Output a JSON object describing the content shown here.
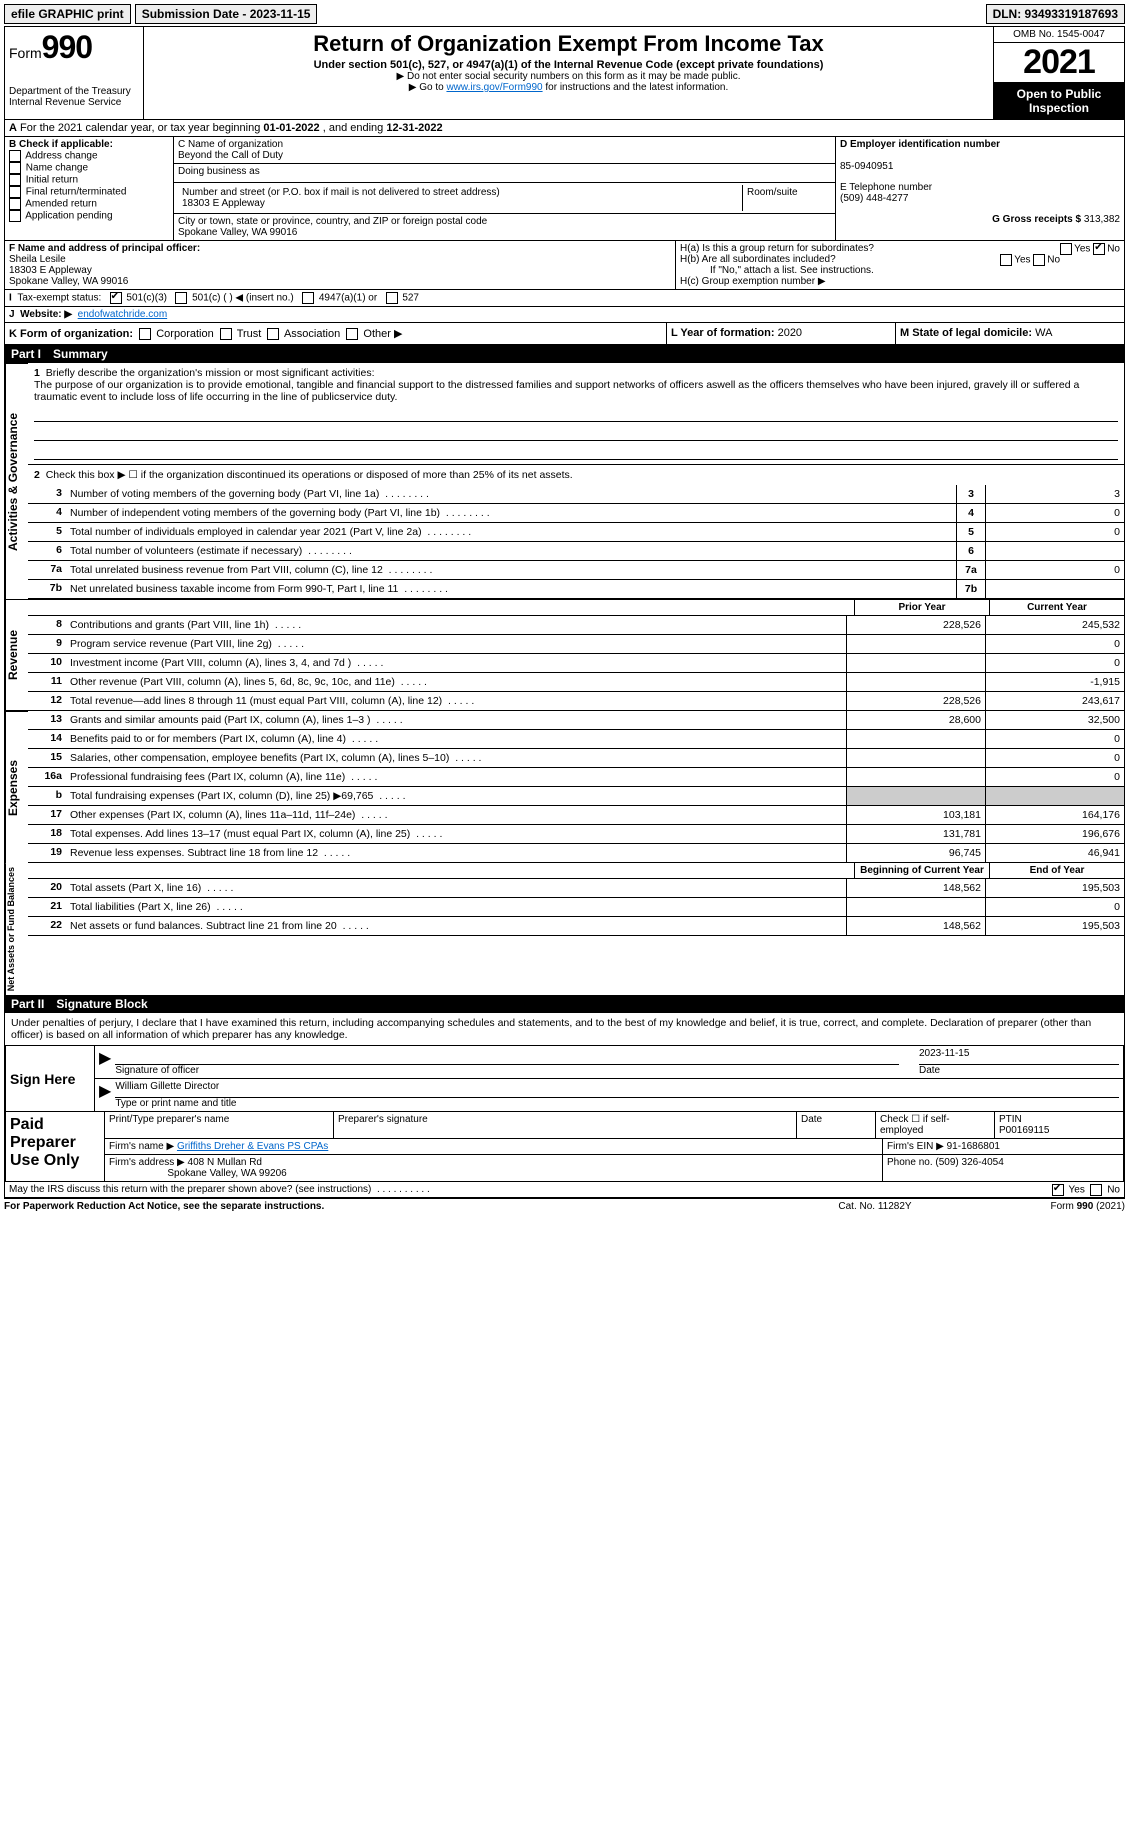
{
  "topbar": {
    "efile": "efile GRAPHIC print",
    "submission_label": "Submission Date - 2023-11-15",
    "dln_label": "DLN: 93493319187693"
  },
  "header": {
    "form_prefix": "Form",
    "form_number": "990",
    "title": "Return of Organization Exempt From Income Tax",
    "subtitle": "Under section 501(c), 527, or 4947(a)(1) of the Internal Revenue Code (except private foundations)",
    "note1": "▶ Do not enter social security numbers on this form as it may be made public.",
    "note2_pre": "▶ Go to ",
    "note2_link": "www.irs.gov/Form990",
    "note2_post": " for instructions and the latest information.",
    "dept": "Department of the Treasury\nInternal Revenue Service",
    "omb": "OMB No. 1545-0047",
    "year": "2021",
    "open": "Open to Public Inspection"
  },
  "rowA": {
    "text_pre": "For the 2021 calendar year, or tax year beginning ",
    "begin": "01-01-2022",
    "mid": " , and ending ",
    "end": "12-31-2022"
  },
  "sectionB": {
    "label": "B Check if applicable:",
    "items": [
      "Address change",
      "Name change",
      "Initial return",
      "Final return/terminated",
      "Amended return",
      "Application pending"
    ]
  },
  "sectionC": {
    "name_label": "C Name of organization",
    "name": "Beyond the Call of Duty",
    "dba_label": "Doing business as",
    "dba": "",
    "street_label": "Number and street (or P.O. box if mail is not delivered to street address)",
    "room_label": "Room/suite",
    "street": "18303 E Appleway",
    "city_label": "City or town, state or province, country, and ZIP or foreign postal code",
    "city": "Spokane Valley, WA  99016"
  },
  "sectionD": {
    "ein_label": "D Employer identification number",
    "ein": "85-0940951",
    "tel_label": "E Telephone number",
    "tel": "(509) 448-4277",
    "gross_label": "G Gross receipts $",
    "gross": "313,382"
  },
  "sectionF": {
    "label": "F Name and address of principal officer:",
    "name": "Sheila Lesile",
    "addr1": "18303 E Appleway",
    "addr2": "Spokane Valley, WA  99016"
  },
  "sectionH": {
    "ha": "H(a)  Is this a group return for subordinates?",
    "hb": "H(b)  Are all subordinates included?",
    "hb_note": "If \"No,\" attach a list. See instructions.",
    "hc": "H(c)  Group exemption number ▶",
    "yes": "Yes",
    "no": "No"
  },
  "rowI": {
    "label": "Tax-exempt status:",
    "opts": [
      "501(c)(3)",
      "501(c) (    ) ◀ (insert no.)",
      "4947(a)(1) or",
      "527"
    ]
  },
  "rowJ": {
    "label": "Website: ▶",
    "value": "endofwatchride.com"
  },
  "rowK": {
    "label": "K Form of organization:",
    "opts": [
      "Corporation",
      "Trust",
      "Association",
      "Other ▶"
    ]
  },
  "rowL": {
    "label": "L Year of formation:",
    "value": "2020"
  },
  "rowM": {
    "label": "M State of legal domicile:",
    "value": "WA"
  },
  "partI": {
    "tag": "Part I",
    "title": "Summary",
    "side1": "Activities & Governance",
    "side2": "Revenue",
    "side3": "Expenses",
    "side4": "Net Assets or Fund Balances",
    "l1_label": "Briefly describe the organization's mission or most significant activities:",
    "l1_text": "The purpose of our organization is to provide emotional, tangible and financial support to the distressed families and support networks of officers aswell as the officers themselves who have been injured, gravely ill or suffered a traumatic event to include loss of life occurring in the line of publicservice duty.",
    "l2": "Check this box ▶ ☐ if the organization discontinued its operations or disposed of more than 25% of its net assets.",
    "lines_ag": [
      {
        "n": "3",
        "d": "Number of voting members of the governing body (Part VI, line 1a)",
        "v": "3"
      },
      {
        "n": "4",
        "d": "Number of independent voting members of the governing body (Part VI, line 1b)",
        "v": "0"
      },
      {
        "n": "5",
        "d": "Total number of individuals employed in calendar year 2021 (Part V, line 2a)",
        "v": "0"
      },
      {
        "n": "6",
        "d": "Total number of volunteers (estimate if necessary)",
        "v": ""
      },
      {
        "n": "7a",
        "d": "Total unrelated business revenue from Part VIII, column (C), line 12",
        "v": "0"
      },
      {
        "n": "7b",
        "d": "Net unrelated business taxable income from Form 990-T, Part I, line 11",
        "v": ""
      }
    ],
    "col_prior": "Prior Year",
    "col_current": "Current Year",
    "lines_rev": [
      {
        "n": "8",
        "d": "Contributions and grants (Part VIII, line 1h)",
        "p": "228,526",
        "c": "245,532"
      },
      {
        "n": "9",
        "d": "Program service revenue (Part VIII, line 2g)",
        "p": "",
        "c": "0"
      },
      {
        "n": "10",
        "d": "Investment income (Part VIII, column (A), lines 3, 4, and 7d )",
        "p": "",
        "c": "0"
      },
      {
        "n": "11",
        "d": "Other revenue (Part VIII, column (A), lines 5, 6d, 8c, 9c, 10c, and 11e)",
        "p": "",
        "c": "-1,915"
      },
      {
        "n": "12",
        "d": "Total revenue—add lines 8 through 11 (must equal Part VIII, column (A), line 12)",
        "p": "228,526",
        "c": "243,617"
      }
    ],
    "lines_exp": [
      {
        "n": "13",
        "d": "Grants and similar amounts paid (Part IX, column (A), lines 1–3 )",
        "p": "28,600",
        "c": "32,500"
      },
      {
        "n": "14",
        "d": "Benefits paid to or for members (Part IX, column (A), line 4)",
        "p": "",
        "c": "0"
      },
      {
        "n": "15",
        "d": "Salaries, other compensation, employee benefits (Part IX, column (A), lines 5–10)",
        "p": "",
        "c": "0"
      },
      {
        "n": "16a",
        "d": "Professional fundraising fees (Part IX, column (A), line 11e)",
        "p": "",
        "c": "0"
      },
      {
        "n": "b",
        "d": "Total fundraising expenses (Part IX, column (D), line 25) ▶69,765",
        "p": "SHADE",
        "c": "SHADE"
      },
      {
        "n": "17",
        "d": "Other expenses (Part IX, column (A), lines 11a–11d, 11f–24e)",
        "p": "103,181",
        "c": "164,176"
      },
      {
        "n": "18",
        "d": "Total expenses. Add lines 13–17 (must equal Part IX, column (A), line 25)",
        "p": "131,781",
        "c": "196,676"
      },
      {
        "n": "19",
        "d": "Revenue less expenses. Subtract line 18 from line 12",
        "p": "96,745",
        "c": "46,941"
      }
    ],
    "col_begin": "Beginning of Current Year",
    "col_end": "End of Year",
    "lines_net": [
      {
        "n": "20",
        "d": "Total assets (Part X, line 16)",
        "p": "148,562",
        "c": "195,503"
      },
      {
        "n": "21",
        "d": "Total liabilities (Part X, line 26)",
        "p": "",
        "c": "0"
      },
      {
        "n": "22",
        "d": "Net assets or fund balances. Subtract line 21 from line 20",
        "p": "148,562",
        "c": "195,503"
      }
    ]
  },
  "partII": {
    "tag": "Part II",
    "title": "Signature Block",
    "decl": "Under penalties of perjury, I declare that I have examined this return, including accompanying schedules and statements, and to the best of my knowledge and belief, it is true, correct, and complete. Declaration of preparer (other than officer) is based on all information of which preparer has any knowledge.",
    "sign_here": "Sign Here",
    "sig_officer": "Signature of officer",
    "sig_date": "2023-11-15",
    "date_lbl": "Date",
    "typed_name": "William Gillette  Director",
    "typed_lbl": "Type or print name and title",
    "paid": "Paid Preparer Use Only",
    "pp_name_lbl": "Print/Type preparer's name",
    "pp_sig_lbl": "Preparer's signature",
    "pp_date_lbl": "Date",
    "pp_self": "Check ☐ if self-employed",
    "ptin_lbl": "PTIN",
    "ptin": "P00169115",
    "firm_name_lbl": "Firm's name    ▶",
    "firm_name": "Griffiths Dreher & Evans PS CPAs",
    "firm_ein_lbl": "Firm's EIN ▶",
    "firm_ein": "91-1686801",
    "firm_addr_lbl": "Firm's address ▶",
    "firm_addr": "408 N Mullan Rd",
    "firm_city": "Spokane Valley, WA  99206",
    "firm_phone_lbl": "Phone no.",
    "firm_phone": "(509) 326-4054",
    "discuss": "May the IRS discuss this return with the preparer shown above? (see instructions)",
    "discuss_yes": "Yes",
    "discuss_no": "No"
  },
  "footer": {
    "pra": "For Paperwork Reduction Act Notice, see the separate instructions.",
    "cat": "Cat. No. 11282Y",
    "form": "Form 990 (2021)"
  }
}
